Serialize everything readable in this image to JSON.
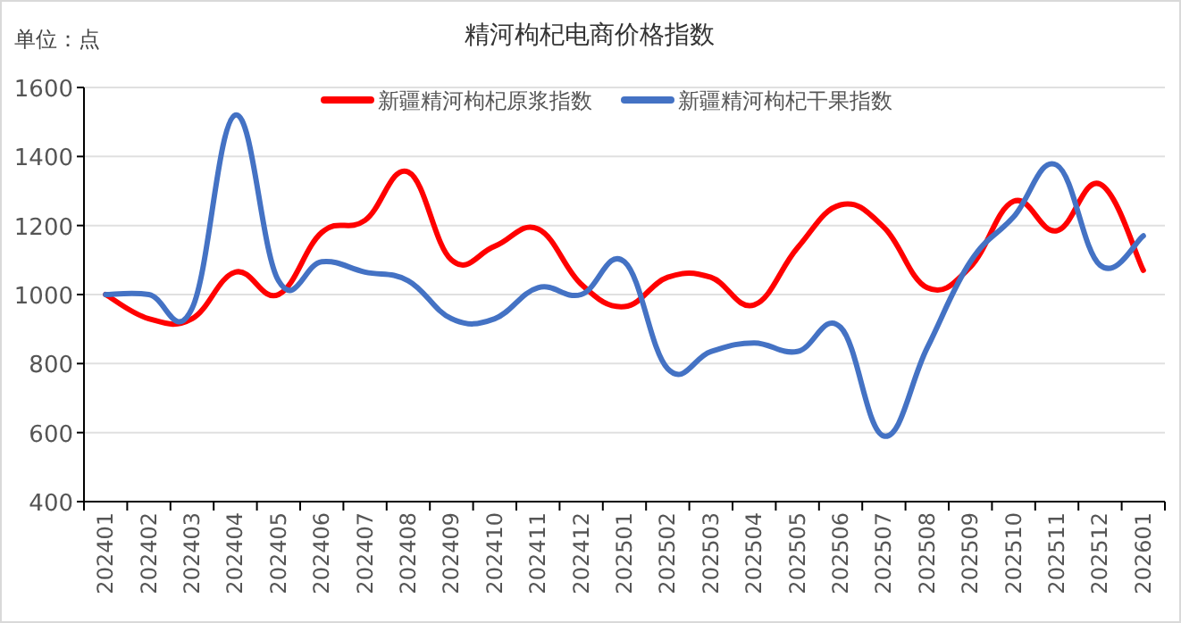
{
  "chart_data": {
    "type": "line",
    "title": "精河枸杞电商价格指数",
    "annotations": [
      "单位：点"
    ],
    "categories": [
      "202401",
      "202402",
      "202403",
      "202404",
      "202405",
      "202406",
      "202407",
      "202408",
      "202409",
      "202410",
      "202411",
      "202412",
      "202501",
      "202502",
      "202503",
      "202504",
      "202505",
      "202506",
      "202507",
      "202508",
      "202509",
      "202510",
      "202511",
      "202512",
      "202601"
    ],
    "series": [
      {
        "name": "新疆精河枸杞原浆指数",
        "color": "#ff0000",
        "values": [
          1000,
          930,
          930,
          1065,
          1000,
          1180,
          1215,
          1355,
          1100,
          1140,
          1190,
          1030,
          965,
          1050,
          1050,
          970,
          1135,
          1260,
          1195,
          1020,
          1080,
          1270,
          1185,
          1320,
          1070
        ]
      },
      {
        "name": "新疆精河枸杞干果指数",
        "color": "#4472c4",
        "values": [
          1000,
          1000,
          960,
          1520,
          1040,
          1095,
          1065,
          1040,
          930,
          930,
          1020,
          1000,
          1095,
          785,
          835,
          860,
          835,
          905,
          590,
          845,
          1095,
          1225,
          1375,
          1085,
          1170
        ]
      }
    ],
    "ylim": [
      400,
      1600
    ],
    "yticks": [
      400,
      600,
      800,
      1000,
      1200,
      1400,
      1600
    ],
    "grid": "y",
    "legend": "top",
    "marker": "none",
    "line_style": "solid"
  }
}
